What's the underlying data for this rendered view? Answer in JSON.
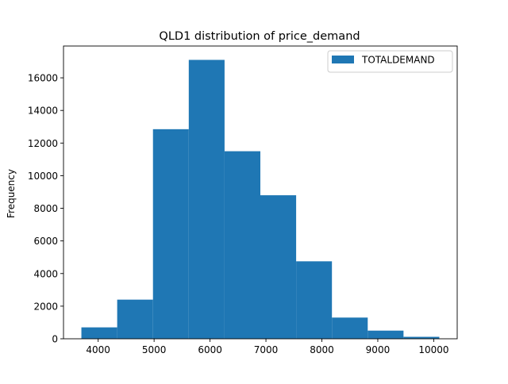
{
  "chart_data": {
    "type": "bar",
    "title": "QLD1 distribution of price_demand",
    "xlabel": "",
    "ylabel": "Frequency",
    "xlim": [
      3380,
      10420
    ],
    "ylim": [
      0,
      17950
    ],
    "xticks": [
      4000,
      5000,
      6000,
      7000,
      8000,
      9000,
      10000
    ],
    "yticks": [
      0,
      2000,
      4000,
      6000,
      8000,
      10000,
      12000,
      14000,
      16000
    ],
    "grid": false,
    "legend": {
      "position": "top-right",
      "entries": [
        "TOTALDEMAND"
      ]
    },
    "series": [
      {
        "name": "TOTALDEMAND",
        "color": "#1f77b4",
        "bins": [
          {
            "x0": 3700,
            "x1": 4340,
            "value": 700
          },
          {
            "x0": 4340,
            "x1": 4980,
            "value": 2400
          },
          {
            "x0": 4980,
            "x1": 5620,
            "value": 12850
          },
          {
            "x0": 5620,
            "x1": 6260,
            "value": 17100
          },
          {
            "x0": 6260,
            "x1": 6900,
            "value": 11500
          },
          {
            "x0": 6900,
            "x1": 7540,
            "value": 8800
          },
          {
            "x0": 7540,
            "x1": 8180,
            "value": 4750
          },
          {
            "x0": 8180,
            "x1": 8820,
            "value": 1300
          },
          {
            "x0": 8820,
            "x1": 9460,
            "value": 500
          },
          {
            "x0": 9460,
            "x1": 10100,
            "value": 120
          }
        ]
      }
    ]
  }
}
